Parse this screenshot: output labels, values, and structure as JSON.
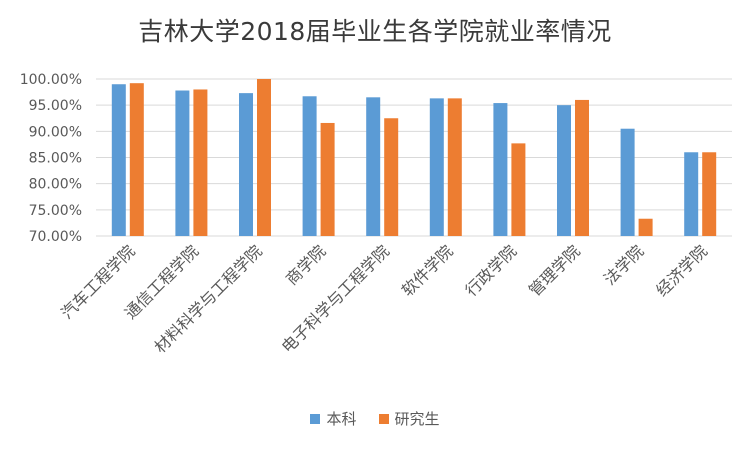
{
  "chart_data": {
    "type": "bar",
    "title": "吉林大学2018届毕业生各学院就业率情况",
    "categories": [
      "汽车工程学院",
      "通信工程学院",
      "材料科学与工程学院",
      "商学院",
      "电子科学与工程学院",
      "软件学院",
      "行政学院",
      "管理学院",
      "法学院",
      "经济学院"
    ],
    "series": [
      {
        "name": "本科",
        "color": "#5b9bd5",
        "values": [
          99.0,
          97.8,
          97.3,
          96.7,
          96.5,
          96.3,
          95.4,
          95.0,
          90.5,
          86.0
        ]
      },
      {
        "name": "研究生",
        "color": "#ed7d31",
        "values": [
          99.2,
          98.0,
          100.0,
          91.6,
          92.5,
          96.3,
          87.7,
          96.0,
          73.3,
          86.0
        ]
      }
    ],
    "ylim": [
      70,
      100
    ],
    "yticks": [
      "70.00%",
      "75.00%",
      "80.00%",
      "85.00%",
      "90.00%",
      "95.00%",
      "100.00%"
    ],
    "ytick_values": [
      70,
      75,
      80,
      85,
      90,
      95,
      100
    ],
    "grid": true,
    "legend": "bottom"
  }
}
